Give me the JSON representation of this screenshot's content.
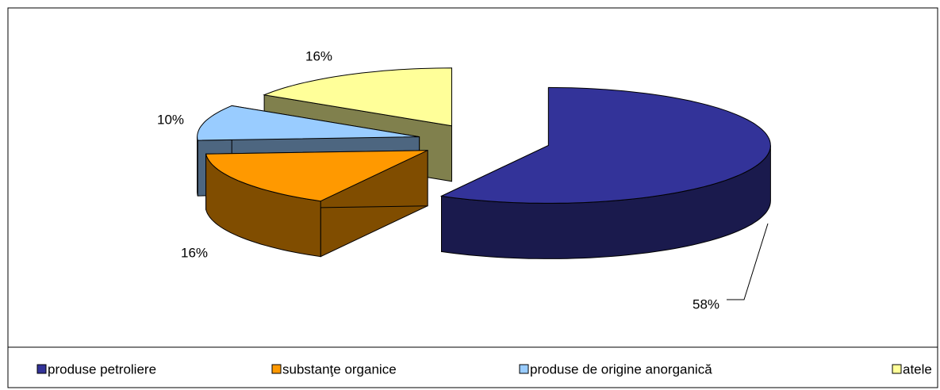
{
  "chart_data": {
    "type": "pie3d",
    "categories": [
      "produse petroliere",
      "substanţe organice",
      "produse de origine anorganică",
      "atele"
    ],
    "values": [
      58,
      16,
      10,
      16
    ],
    "value_labels": [
      "58%",
      "16%",
      "10%",
      "16%"
    ],
    "colors": [
      "#333399",
      "#FF9900",
      "#99CCFF",
      "#FFFF99"
    ],
    "legend": "bottom"
  }
}
